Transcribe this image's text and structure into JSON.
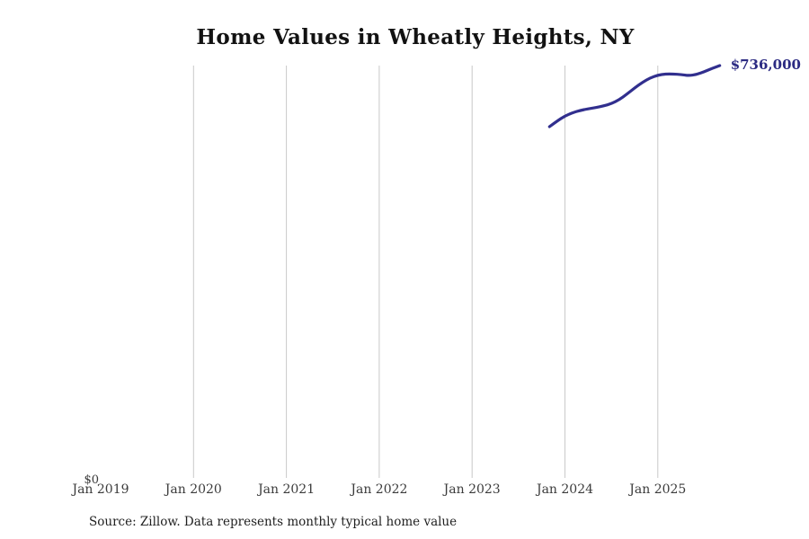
{
  "title": "Home Values in Wheatly Heights, NY",
  "source_note": "Source: Zillow. Data represents monthly typical home value",
  "colors": {
    "background": "#ffffff",
    "line": "#312f8e",
    "end_label": "#2b2a82",
    "grid": "#c9c9c9",
    "axis_text": "#3b3b3b",
    "title_text": "#121212",
    "source_text": "#1f1f1f"
  },
  "chart_data": {
    "type": "line",
    "title": "Home Values in Wheatly Heights, NY",
    "xlabel": "",
    "ylabel": "",
    "ylim": [
      0,
      736000
    ],
    "grid": "vertical",
    "legend": "none",
    "x_tick_labels": [
      "Jan 2019",
      "Jan 2020",
      "Jan 2021",
      "Jan 2022",
      "Jan 2023",
      "Jan 2024",
      "Jan 2025"
    ],
    "y_tick_labels": [
      "$0"
    ],
    "end_label": "$736,000",
    "end_value": 736000,
    "series": [
      {
        "name": "Typical home value",
        "x": [
          "2023-11",
          "2023-12",
          "2024-01",
          "2024-02",
          "2024-03",
          "2024-04",
          "2024-05",
          "2024-06",
          "2024-07",
          "2024-08",
          "2024-09",
          "2024-10",
          "2024-11",
          "2024-12",
          "2025-01",
          "2025-02",
          "2025-03",
          "2025-04",
          "2025-05",
          "2025-06",
          "2025-07",
          "2025-08",
          "2025-09"
        ],
        "values": [
          627000,
          637000,
          646000,
          652000,
          656000,
          659000,
          661000,
          664000,
          668000,
          675000,
          685000,
          696000,
          706000,
          714000,
          719000,
          721000,
          721000,
          720000,
          718000,
          720000,
          725000,
          731000,
          736000
        ]
      }
    ]
  }
}
